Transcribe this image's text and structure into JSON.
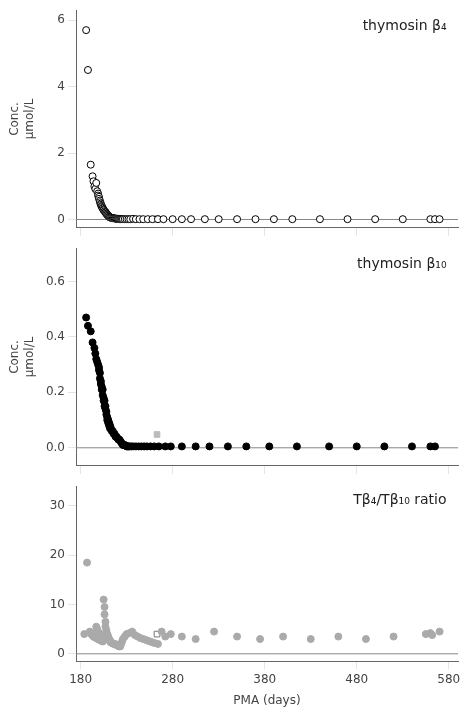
{
  "chart_data": [
    {
      "type": "scatter",
      "annotation": "thymosin β₄",
      "ylabel": "Conc.\nμmol/L",
      "xlim": [
        175,
        590
      ],
      "xticks": [
        180,
        280,
        380,
        480,
        580
      ],
      "ylim": [
        -0.25,
        6.3
      ],
      "yticks": [
        0,
        2,
        4,
        6
      ],
      "grid": false,
      "legend": false,
      "tick_labels": "y",
      "hline": 0,
      "series": [
        {
          "marker": "circle_open",
          "color": "#000000",
          "x": [
            186,
            188,
            191,
            193,
            194,
            195,
            196,
            197,
            198,
            199,
            199,
            200,
            200,
            201,
            201,
            202,
            202,
            203,
            203,
            204,
            204,
            205,
            205,
            206,
            207,
            207,
            208,
            208,
            209,
            209,
            210,
            210,
            211,
            211,
            212,
            212,
            213,
            214,
            215,
            216,
            217,
            218,
            219,
            220,
            221,
            222,
            223,
            224,
            225,
            226,
            228,
            230,
            232,
            234,
            237,
            240,
            244,
            248,
            253,
            258,
            264,
            270,
            280,
            290,
            300,
            315,
            330,
            350,
            370,
            390,
            410,
            440,
            470,
            500,
            530,
            560,
            565,
            570
          ],
          "values": [
            5.7,
            4.5,
            1.65,
            1.3,
            1.15,
            1.0,
            0.92,
            1.1,
            0.85,
            0.78,
            0.72,
            0.68,
            0.62,
            0.57,
            0.52,
            0.48,
            0.44,
            0.41,
            0.38,
            0.35,
            0.33,
            0.3,
            0.28,
            0.25,
            0.23,
            0.21,
            0.19,
            0.17,
            0.15,
            0.14,
            0.12,
            0.11,
            0.09,
            0.08,
            0.07,
            0.06,
            0.05,
            0.05,
            0.04,
            0.04,
            0.03,
            0.03,
            0.02,
            0.02,
            0.02,
            0.01,
            0.01,
            0.01,
            0.01,
            0.01,
            0.01,
            0.01,
            0.01,
            0.01,
            0.02,
            0.01,
            0.01,
            0.01,
            0.01,
            0.01,
            0.01,
            0.01,
            0.01,
            0.01,
            0.01,
            0.01,
            0.01,
            0.01,
            0.01,
            0.01,
            0.01,
            0.01,
            0.01,
            0.01,
            0.01,
            0.01,
            0.01,
            0.01
          ]
        },
        {
          "marker": "square",
          "color": "#000000",
          "x": [
            263
          ],
          "values": [
            0.015
          ]
        }
      ]
    },
    {
      "type": "scatter",
      "annotation": "thymosin β₁₀",
      "ylabel": "Conc.\nμmol/L",
      "xlim": [
        175,
        590
      ],
      "xticks": [
        180,
        280,
        380,
        480,
        580
      ],
      "ylim": [
        -0.065,
        0.72
      ],
      "yticks": [
        {
          "value": 0,
          "label": "0.0"
        },
        0.2,
        0.4,
        0.6
      ],
      "grid": false,
      "legend": false,
      "tick_labels": "y",
      "hline": 0,
      "series": [
        {
          "marker": "circle",
          "color": "#000000",
          "x": [
            186,
            188,
            191,
            193,
            195,
            196,
            197,
            198,
            199,
            200,
            200,
            201,
            201,
            202,
            202,
            203,
            203,
            204,
            204,
            205,
            205,
            206,
            206,
            207,
            207,
            208,
            208,
            209,
            209,
            210,
            210,
            211,
            211,
            212,
            212,
            213,
            214,
            215,
            216,
            217,
            218,
            219,
            220,
            221,
            222,
            223,
            224,
            225,
            226,
            227,
            228,
            229,
            230,
            231,
            232,
            233,
            235,
            237,
            240,
            243,
            246,
            249,
            252,
            256,
            260,
            265,
            272,
            278,
            290,
            305,
            320,
            340,
            360,
            385,
            415,
            450,
            480,
            510,
            540,
            560,
            565
          ],
          "values": [
            0.47,
            0.44,
            0.42,
            0.38,
            0.36,
            0.34,
            0.32,
            0.31,
            0.3,
            0.29,
            0.28,
            0.27,
            0.25,
            0.24,
            0.23,
            0.22,
            0.21,
            0.21,
            0.19,
            0.18,
            0.17,
            0.17,
            0.15,
            0.15,
            0.14,
            0.13,
            0.12,
            0.11,
            0.1,
            0.1,
            0.09,
            0.09,
            0.08,
            0.08,
            0.07,
            0.07,
            0.06,
            0.06,
            0.05,
            0.05,
            0.04,
            0.04,
            0.035,
            0.03,
            0.03,
            0.025,
            0.02,
            0.015,
            0.01,
            0.01,
            0.01,
            0.008,
            0.005,
            0.005,
            0.005,
            0.005,
            0.005,
            0.005,
            0.005,
            0.005,
            0.005,
            0.005,
            0.005,
            0.005,
            0.005,
            0.005,
            0.005,
            0.005,
            0.005,
            0.005,
            0.005,
            0.005,
            0.005,
            0.005,
            0.005,
            0.005,
            0.005,
            0.005,
            0.005,
            0.005,
            0.005
          ]
        },
        {
          "marker": "square",
          "color": "#bbbbbb",
          "x": [
            263
          ],
          "values": [
            0.048
          ]
        }
      ]
    },
    {
      "type": "scatter",
      "annotation": "Tβ₄/Tβ₁₀ ratio",
      "xlabel": "PMA (days)",
      "xlim": [
        175,
        590
      ],
      "xticks": [
        180,
        280,
        380,
        480,
        580
      ],
      "ylim": [
        -1.5,
        34
      ],
      "yticks": [
        0,
        10,
        20,
        30
      ],
      "grid": false,
      "legend": false,
      "hline": 0,
      "series": [
        {
          "marker": "circle",
          "color": "#aaaaaa",
          "x": [
            184,
            187,
            190,
            191,
            192,
            193,
            194,
            195,
            196,
            197,
            197,
            198,
            198,
            199,
            199,
            200,
            200,
            201,
            201,
            202,
            202,
            203,
            203,
            204,
            204,
            205,
            206,
            206,
            207,
            207,
            208,
            208,
            209,
            209,
            210,
            210,
            211,
            211,
            212,
            212,
            213,
            213,
            214,
            215,
            216,
            217,
            218,
            219,
            220,
            221,
            222,
            223,
            224,
            225,
            226,
            228,
            230,
            233,
            236,
            239,
            242,
            245,
            248,
            251,
            254,
            257,
            260,
            264,
            268,
            272,
            278,
            290,
            305,
            325,
            350,
            375,
            400,
            430,
            460,
            490,
            520,
            555,
            560,
            562,
            570
          ],
          "values": [
            4.0,
            18.5,
            4.5,
            4.2,
            3.9,
            3.7,
            3.5,
            3.4,
            3.3,
            3.2,
            5.5,
            3.1,
            5.0,
            3.0,
            4.5,
            2.9,
            4.2,
            2.8,
            4.0,
            2.7,
            3.8,
            2.6,
            3.6,
            2.5,
            3.4,
            11.0,
            9.5,
            8.0,
            6.5,
            5.5,
            4.8,
            4.3,
            4.0,
            3.8,
            3.5,
            3.2,
            3.0,
            2.8,
            2.7,
            2.5,
            2.4,
            2.3,
            2.2,
            2.1,
            2.0,
            2.0,
            1.9,
            1.8,
            1.7,
            1.6,
            1.5,
            1.5,
            2.0,
            2.5,
            3.0,
            3.5,
            4.0,
            4.2,
            4.5,
            3.8,
            3.5,
            3.2,
            3.0,
            2.8,
            2.6,
            2.4,
            2.2,
            2.0,
            4.5,
            3.5,
            4.0,
            3.5,
            3.0,
            4.5,
            3.5,
            3.0,
            3.5,
            3.0,
            3.5,
            3.0,
            3.5,
            4.0,
            4.2,
            3.8,
            4.5
          ]
        },
        {
          "marker": "square_open",
          "color": "#777777",
          "x": [
            263
          ],
          "values": [
            4.0
          ]
        }
      ]
    }
  ]
}
